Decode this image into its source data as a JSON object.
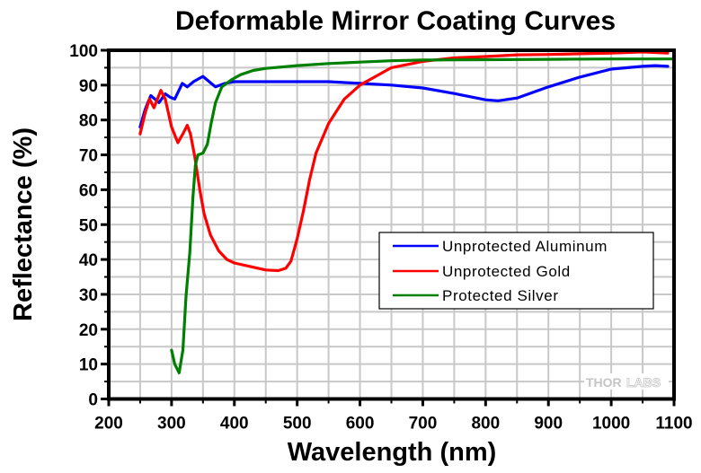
{
  "chart_data": {
    "type": "line",
    "title": "Deformable Mirror Coating Curves",
    "xlabel": "Wavelength (nm)",
    "ylabel": "Reflectance (%)",
    "xlim": [
      200,
      1100
    ],
    "ylim": [
      0,
      100
    ],
    "xticks": [
      200,
      300,
      400,
      500,
      600,
      700,
      800,
      900,
      1000,
      1100
    ],
    "yticks": [
      0,
      10,
      20,
      30,
      40,
      50,
      60,
      70,
      80,
      90,
      100
    ],
    "x_minor_step": 50,
    "y_minor_step": 5,
    "grid": true,
    "legend_position": "center-right",
    "watermark": {
      "left": "THOR",
      "right": "LABS"
    },
    "series": [
      {
        "name": "Unprotected Aluminum",
        "color": "#0000ff",
        "points": [
          [
            250,
            78
          ],
          [
            258,
            83
          ],
          [
            267,
            87
          ],
          [
            280,
            85
          ],
          [
            290,
            87.5
          ],
          [
            298,
            86.5
          ],
          [
            305,
            86
          ],
          [
            317,
            90.5
          ],
          [
            325,
            89.5
          ],
          [
            335,
            91
          ],
          [
            350,
            92.5
          ],
          [
            360,
            91
          ],
          [
            370,
            89.5
          ],
          [
            385,
            90.5
          ],
          [
            400,
            91
          ],
          [
            450,
            91
          ],
          [
            500,
            91
          ],
          [
            550,
            91
          ],
          [
            600,
            90.5
          ],
          [
            650,
            90
          ],
          [
            700,
            89.2
          ],
          [
            750,
            87.6
          ],
          [
            800,
            85.8
          ],
          [
            820,
            85.5
          ],
          [
            850,
            86.3
          ],
          [
            900,
            89.5
          ],
          [
            950,
            92.3
          ],
          [
            1000,
            94.6
          ],
          [
            1050,
            95.4
          ],
          [
            1070,
            95.6
          ],
          [
            1090,
            95.4
          ]
        ]
      },
      {
        "name": "Unprotected Gold",
        "color": "#ff0000",
        "points": [
          [
            250,
            76
          ],
          [
            258,
            82
          ],
          [
            265,
            86
          ],
          [
            272,
            83.5
          ],
          [
            283,
            88.5
          ],
          [
            290,
            86
          ],
          [
            300,
            78
          ],
          [
            310,
            73.5
          ],
          [
            318,
            76
          ],
          [
            325,
            78.5
          ],
          [
            330,
            76
          ],
          [
            337,
            69.5
          ],
          [
            345,
            60
          ],
          [
            352,
            53
          ],
          [
            362,
            47
          ],
          [
            375,
            42.5
          ],
          [
            388,
            40
          ],
          [
            400,
            39
          ],
          [
            425,
            38
          ],
          [
            450,
            37
          ],
          [
            470,
            36.8
          ],
          [
            482,
            37.5
          ],
          [
            490,
            39.5
          ],
          [
            500,
            46
          ],
          [
            510,
            54
          ],
          [
            520,
            63
          ],
          [
            530,
            70.5
          ],
          [
            550,
            79
          ],
          [
            575,
            86
          ],
          [
            600,
            90
          ],
          [
            625,
            92.5
          ],
          [
            650,
            95
          ],
          [
            700,
            96.8
          ],
          [
            750,
            97.8
          ],
          [
            800,
            98.2
          ],
          [
            850,
            98.7
          ],
          [
            900,
            98.8
          ],
          [
            950,
            99
          ],
          [
            1000,
            99.2
          ],
          [
            1050,
            99.5
          ],
          [
            1090,
            99.2
          ]
        ]
      },
      {
        "name": "Protected Silver",
        "color": "#008000",
        "points": [
          [
            300,
            14
          ],
          [
            305,
            10
          ],
          [
            312,
            7.5
          ],
          [
            318,
            14
          ],
          [
            323,
            29.5
          ],
          [
            329,
            42
          ],
          [
            334,
            58
          ],
          [
            338,
            67
          ],
          [
            342,
            70
          ],
          [
            350,
            70.5
          ],
          [
            357,
            73
          ],
          [
            363,
            79
          ],
          [
            370,
            85
          ],
          [
            380,
            89.5
          ],
          [
            395,
            91.5
          ],
          [
            410,
            93
          ],
          [
            430,
            94.2
          ],
          [
            450,
            94.8
          ],
          [
            500,
            95.6
          ],
          [
            550,
            96.2
          ],
          [
            600,
            96.6
          ],
          [
            650,
            97
          ],
          [
            700,
            97.2
          ],
          [
            800,
            97.3
          ],
          [
            900,
            97.4
          ],
          [
            1000,
            97.5
          ],
          [
            1100,
            97.5
          ]
        ]
      }
    ]
  }
}
